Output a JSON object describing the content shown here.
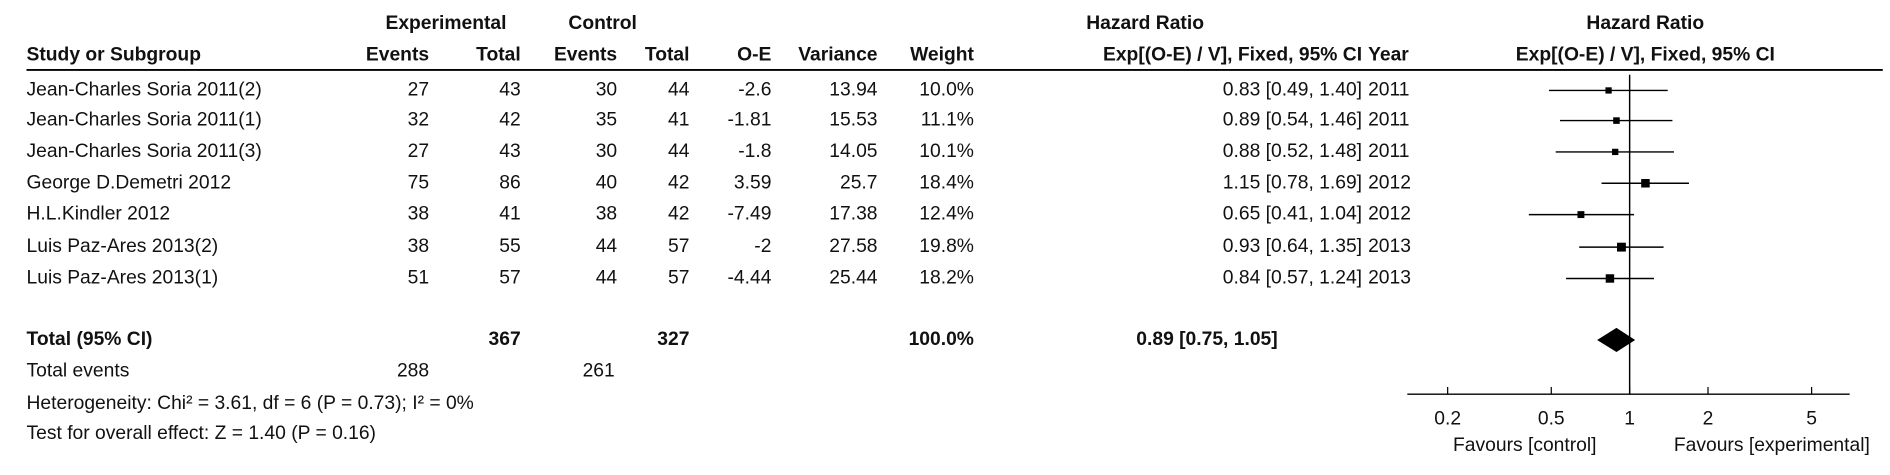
{
  "chart_data": {
    "type": "forest",
    "column_groups": [
      "Experimental",
      "Control",
      "Hazard Ratio",
      "Hazard Ratio"
    ],
    "columns": [
      "Study or Subgroup",
      "Events",
      "Total",
      "Events",
      "Total",
      "O-E",
      "Variance",
      "Weight",
      "Exp[(O-E) / V], Fixed, 95% CI",
      "Year",
      "Exp[(O-E) / V], Fixed, 95% CI"
    ],
    "studies": [
      {
        "name": "Jean-Charles Soria 2011(2)",
        "exp_events": 27,
        "exp_total": 43,
        "ctl_events": 30,
        "ctl_total": 44,
        "oe": -2.6,
        "variance": 13.94,
        "weight": 10.0,
        "weight_label": "10.0%",
        "hr": 0.83,
        "ci": [
          0.49,
          1.4
        ],
        "hr_label": "0.83 [0.49, 1.40]",
        "year": 2011
      },
      {
        "name": "Jean-Charles Soria 2011(1)",
        "exp_events": 32,
        "exp_total": 42,
        "ctl_events": 35,
        "ctl_total": 41,
        "oe": -1.81,
        "variance": 15.53,
        "weight": 11.1,
        "weight_label": "11.1%",
        "hr": 0.89,
        "ci": [
          0.54,
          1.46
        ],
        "hr_label": "0.89 [0.54, 1.46]",
        "year": 2011
      },
      {
        "name": "Jean-Charles Soria 2011(3)",
        "exp_events": 27,
        "exp_total": 43,
        "ctl_events": 30,
        "ctl_total": 44,
        "oe": -1.8,
        "variance": 14.05,
        "weight": 10.1,
        "weight_label": "10.1%",
        "hr": 0.88,
        "ci": [
          0.52,
          1.48
        ],
        "hr_label": "0.88 [0.52, 1.48]",
        "year": 2011
      },
      {
        "name": "George D.Demetri 2012",
        "exp_events": 75,
        "exp_total": 86,
        "ctl_events": 40,
        "ctl_total": 42,
        "oe": 3.59,
        "variance": 25.7,
        "weight": 18.4,
        "weight_label": "18.4%",
        "hr": 1.15,
        "ci": [
          0.78,
          1.69
        ],
        "hr_label": "1.15 [0.78, 1.69]",
        "year": 2012
      },
      {
        "name": "H.L.Kindler 2012",
        "exp_events": 38,
        "exp_total": 41,
        "ctl_events": 38,
        "ctl_total": 42,
        "oe": -7.49,
        "variance": 17.38,
        "weight": 12.4,
        "weight_label": "12.4%",
        "hr": 0.65,
        "ci": [
          0.41,
          1.04
        ],
        "hr_label": "0.65 [0.41, 1.04]",
        "year": 2012
      },
      {
        "name": "Luis Paz-Ares 2013(2)",
        "exp_events": 38,
        "exp_total": 55,
        "ctl_events": 44,
        "ctl_total": 57,
        "oe": -2,
        "variance": 27.58,
        "weight": 19.8,
        "weight_label": "19.8%",
        "hr": 0.93,
        "ci": [
          0.64,
          1.35
        ],
        "hr_label": "0.93 [0.64, 1.35]",
        "year": 2013
      },
      {
        "name": "Luis Paz-Ares 2013(1)",
        "exp_events": 51,
        "exp_total": 57,
        "ctl_events": 44,
        "ctl_total": 57,
        "oe": -4.44,
        "variance": 25.44,
        "weight": 18.2,
        "weight_label": "18.2%",
        "hr": 0.84,
        "ci": [
          0.57,
          1.24
        ],
        "hr_label": "0.84 [0.57, 1.24]",
        "year": 2013
      }
    ],
    "total": {
      "label": "Total (95% CI)",
      "exp_total": 367,
      "ctl_total": 327,
      "weight_label": "100.0%",
      "hr": 0.89,
      "ci": [
        0.75,
        1.05
      ],
      "hr_label": "0.89 [0.75, 1.05]"
    },
    "total_events": {
      "label": "Total events",
      "exp": 288,
      "ctl": 261
    },
    "heterogeneity": "Heterogeneity: Chi² = 3.61, df = 6 (P = 0.73); I² = 0%",
    "overall_effect": "Test for overall effect: Z = 1.40 (P = 0.16)",
    "xscale": "log",
    "xlim": [
      0.14,
      7
    ],
    "xticks": [
      0.2,
      0.5,
      1,
      2,
      5
    ],
    "xlabels": [
      "Favours [control]",
      "Favours [experimental]"
    ],
    "color": "#000000"
  }
}
